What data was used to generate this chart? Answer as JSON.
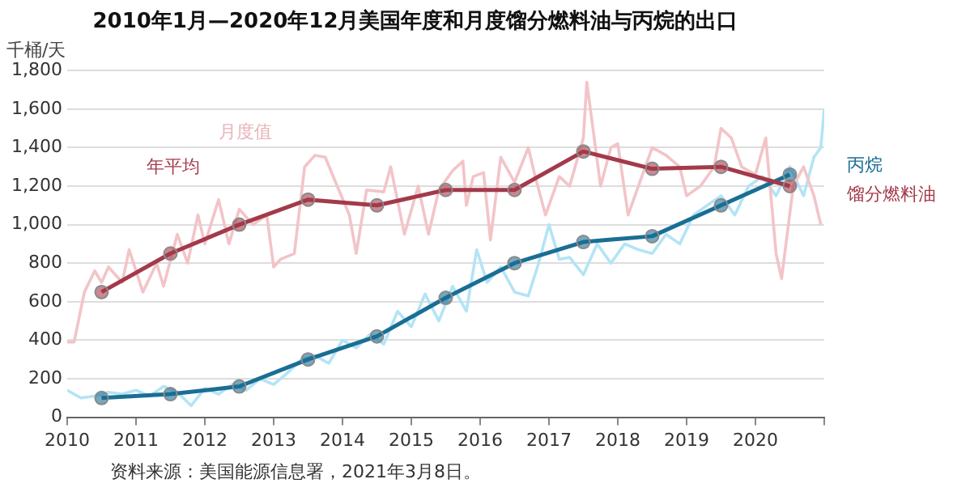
{
  "chart_data": {
    "type": "line",
    "title": "2010年1月—2020年12月美国年度和月度馏分燃料油与丙烷的出口",
    "ylabel": "千桶/天",
    "xlim": [
      2010,
      2021
    ],
    "xticks": [
      2010,
      2011,
      2012,
      2013,
      2014,
      2015,
      2016,
      2017,
      2018,
      2019,
      2020,
      {
        "value": 2021,
        "label": null
      }
    ],
    "ylim": [
      0,
      1800
    ],
    "yticks": [
      0,
      200,
      400,
      600,
      800,
      {
        "value": 1000,
        "label": "1,000"
      },
      {
        "value": 1200,
        "label": "1,200"
      },
      {
        "value": 1400,
        "label": "1,400"
      },
      {
        "value": 1600,
        "label": "1,600"
      },
      {
        "value": 1800,
        "label": "1,800"
      }
    ],
    "grid": "y",
    "legend": false,
    "series": [
      {
        "color": "#f2c4c8",
        "marker": "none",
        "x": [
          2010.0,
          2010.1,
          2010.25,
          2010.4,
          2010.5,
          2010.6,
          2010.8,
          2010.9,
          2011.1,
          2011.3,
          2011.4,
          2011.6,
          2011.75,
          2011.9,
          2012.0,
          2012.2,
          2012.35,
          2012.5,
          2012.7,
          2012.9,
          2013.0,
          2013.1,
          2013.3,
          2013.45,
          2013.6,
          2013.75,
          2013.9,
          2014.1,
          2014.2,
          2014.35,
          2014.6,
          2014.7,
          2014.9,
          2015.1,
          2015.25,
          2015.4,
          2015.6,
          2015.75,
          2015.8,
          2015.9,
          2016.05,
          2016.15,
          2016.3,
          2016.5,
          2016.7,
          2016.8,
          2016.95,
          2017.15,
          2017.3,
          2017.5,
          2017.55,
          2017.75,
          2017.9,
          2018.0,
          2018.15,
          2018.35,
          2018.5,
          2018.7,
          2018.9,
          2019.0,
          2019.2,
          2019.4,
          2019.5,
          2019.65,
          2019.8,
          2020.0,
          2020.15,
          2020.3,
          2020.38,
          2020.55,
          2020.7,
          2020.85,
          2020.95
        ],
        "values": [
          390,
          390,
          650,
          760,
          700,
          780,
          700,
          870,
          650,
          800,
          680,
          950,
          800,
          1050,
          900,
          1130,
          900,
          1080,
          1000,
          1050,
          780,
          820,
          850,
          1300,
          1360,
          1350,
          1220,
          1050,
          850,
          1180,
          1170,
          1300,
          950,
          1200,
          950,
          1180,
          1280,
          1330,
          1100,
          1250,
          1270,
          920,
          1350,
          1220,
          1400,
          1250,
          1050,
          1250,
          1200,
          1450,
          1740,
          1200,
          1400,
          1420,
          1050,
          1250,
          1400,
          1360,
          1300,
          1150,
          1200,
          1300,
          1500,
          1450,
          1300,
          1260,
          1450,
          850,
          720,
          1200,
          1300,
          1150,
          1000
        ]
      },
      {
        "color": "#b3e4f5",
        "marker": "none",
        "x": [
          2010.0,
          2010.2,
          2010.4,
          2010.6,
          2010.8,
          2011.0,
          2011.2,
          2011.4,
          2011.6,
          2011.8,
          2012.0,
          2012.2,
          2012.4,
          2012.6,
          2012.8,
          2013.0,
          2013.2,
          2013.4,
          2013.6,
          2013.8,
          2014.0,
          2014.2,
          2014.4,
          2014.6,
          2014.8,
          2015.0,
          2015.2,
          2015.4,
          2015.6,
          2015.8,
          2015.95,
          2016.1,
          2016.3,
          2016.5,
          2016.7,
          2016.85,
          2017.0,
          2017.15,
          2017.3,
          2017.5,
          2017.7,
          2017.9,
          2018.1,
          2018.3,
          2018.5,
          2018.7,
          2018.9,
          2019.1,
          2019.3,
          2019.5,
          2019.7,
          2019.9,
          2020.1,
          2020.3,
          2020.5,
          2020.7,
          2020.85,
          2020.95,
          2021.0
        ],
        "values": [
          140,
          100,
          110,
          130,
          120,
          140,
          110,
          160,
          130,
          60,
          150,
          120,
          170,
          140,
          200,
          170,
          230,
          300,
          320,
          280,
          400,
          360,
          430,
          380,
          550,
          470,
          640,
          500,
          680,
          550,
          870,
          700,
          780,
          650,
          630,
          800,
          1000,
          820,
          830,
          740,
          900,
          800,
          900,
          870,
          850,
          950,
          900,
          1050,
          1100,
          1150,
          1050,
          1200,
          1250,
          1150,
          1300,
          1150,
          1350,
          1400,
          1600
        ]
      },
      {
        "name": "馏分燃料油",
        "color": "#a33a4a",
        "marker": "circle",
        "x": [
          2010.5,
          2011.5,
          2012.5,
          2013.5,
          2014.5,
          2015.5,
          2016.5,
          2017.5,
          2018.5,
          2019.5,
          2020.5
        ],
        "values": [
          650,
          850,
          1000,
          1130,
          1100,
          1180,
          1180,
          1380,
          1290,
          1300,
          1200
        ]
      },
      {
        "name": "丙烷",
        "color": "#1a6e94",
        "marker": "circle",
        "x": [
          2010.5,
          2011.5,
          2012.5,
          2013.5,
          2014.5,
          2015.5,
          2016.5,
          2017.5,
          2018.5,
          2019.5,
          2020.5
        ],
        "values": [
          100,
          120,
          160,
          300,
          420,
          620,
          800,
          910,
          940,
          1100,
          1260
        ]
      }
    ],
    "annotations": [
      "月度值",
      "年平均",
      "资料来源：美国能源信息署，2021年3月8日。"
    ]
  }
}
